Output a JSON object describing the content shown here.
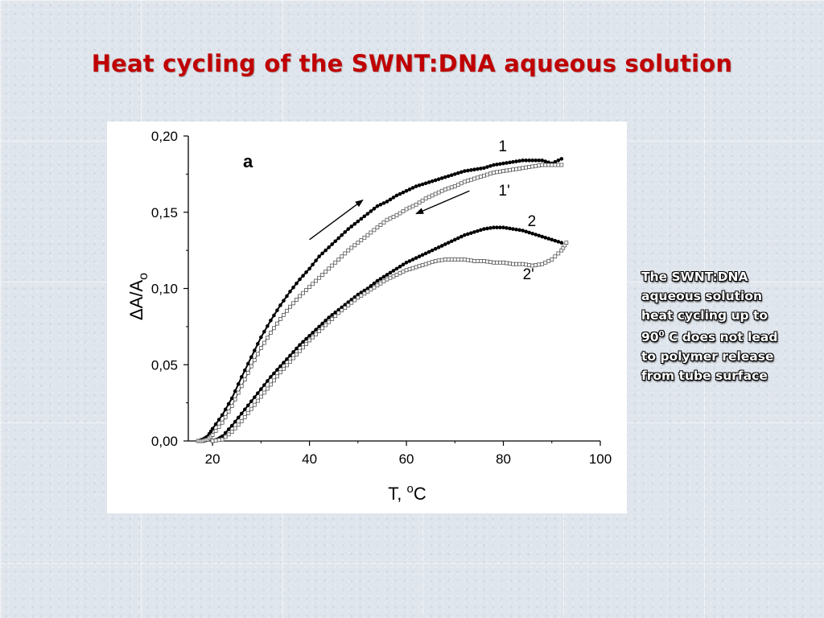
{
  "slide": {
    "title": "Heat cycling of the SWNT:DNA aqueous solution"
  },
  "caption": {
    "line1": "The SWNT:DNA",
    "line2": "aqueous solution",
    "line3": "heat cycling up to",
    "line4_value": "90",
    "line4_sup": "0",
    "line4_rest": " C does not lead",
    "line5": "to polymer release",
    "line6": "from tube surface"
  },
  "chart_data": {
    "type": "scatter",
    "panel_label": "a",
    "xlabel": "T, ",
    "xlabel_sup": "o",
    "xlabel_unit": "C",
    "ylabel": "ΔA/A",
    "ylabel_sub": "o",
    "xlim": [
      15,
      100
    ],
    "ylim": [
      0,
      0.2
    ],
    "x_ticks": [
      20,
      40,
      60,
      80,
      100
    ],
    "x_tick_labels": [
      "20",
      "40",
      "60",
      "80",
      "100"
    ],
    "y_ticks": [
      0,
      0.05,
      0.1,
      0.15,
      0.2
    ],
    "y_tick_labels": [
      "0,00",
      "0,05",
      "0,10",
      "0,15",
      "0,20"
    ],
    "grid": false,
    "series": [
      {
        "name": "1",
        "marker": "filled",
        "color": "#000000",
        "points": [
          [
            17,
            0
          ],
          [
            18,
            0.001
          ],
          [
            19,
            0.003
          ],
          [
            20,
            0.008
          ],
          [
            22,
            0.017
          ],
          [
            24,
            0.028
          ],
          [
            26,
            0.042
          ],
          [
            28,
            0.055
          ],
          [
            30,
            0.068
          ],
          [
            32,
            0.079
          ],
          [
            34,
            0.089
          ],
          [
            36,
            0.098
          ],
          [
            38,
            0.106
          ],
          [
            40,
            0.113
          ],
          [
            42,
            0.121
          ],
          [
            44,
            0.127
          ],
          [
            46,
            0.133
          ],
          [
            48,
            0.139
          ],
          [
            50,
            0.144
          ],
          [
            52,
            0.149
          ],
          [
            54,
            0.154
          ],
          [
            56,
            0.157
          ],
          [
            58,
            0.161
          ],
          [
            60,
            0.164
          ],
          [
            62,
            0.167
          ],
          [
            64,
            0.169
          ],
          [
            66,
            0.171
          ],
          [
            68,
            0.173
          ],
          [
            70,
            0.175
          ],
          [
            72,
            0.177
          ],
          [
            74,
            0.178
          ],
          [
            76,
            0.179
          ],
          [
            78,
            0.181
          ],
          [
            80,
            0.182
          ],
          [
            82,
            0.183
          ],
          [
            84,
            0.184
          ],
          [
            86,
            0.184
          ],
          [
            88,
            0.184
          ],
          [
            90,
            0.182
          ],
          [
            92,
            0.185
          ]
        ]
      },
      {
        "name": "1'",
        "marker": "open",
        "color": "#555555",
        "points": [
          [
            17,
            0
          ],
          [
            18,
            0
          ],
          [
            19,
            0.001
          ],
          [
            20,
            0.004
          ],
          [
            22,
            0.012
          ],
          [
            24,
            0.023
          ],
          [
            26,
            0.036
          ],
          [
            28,
            0.049
          ],
          [
            30,
            0.061
          ],
          [
            32,
            0.071
          ],
          [
            34,
            0.08
          ],
          [
            36,
            0.088
          ],
          [
            38,
            0.095
          ],
          [
            40,
            0.101
          ],
          [
            42,
            0.107
          ],
          [
            44,
            0.113
          ],
          [
            46,
            0.119
          ],
          [
            48,
            0.125
          ],
          [
            50,
            0.13
          ],
          [
            52,
            0.135
          ],
          [
            54,
            0.14
          ],
          [
            56,
            0.145
          ],
          [
            58,
            0.148
          ],
          [
            60,
            0.152
          ],
          [
            62,
            0.155
          ],
          [
            64,
            0.159
          ],
          [
            66,
            0.162
          ],
          [
            68,
            0.165
          ],
          [
            70,
            0.167
          ],
          [
            72,
            0.17
          ],
          [
            74,
            0.172
          ],
          [
            76,
            0.174
          ],
          [
            78,
            0.176
          ],
          [
            80,
            0.177
          ],
          [
            82,
            0.178
          ],
          [
            84,
            0.179
          ],
          [
            86,
            0.18
          ],
          [
            88,
            0.181
          ],
          [
            90,
            0.181
          ],
          [
            92,
            0.181
          ]
        ]
      },
      {
        "name": "2",
        "marker": "filled",
        "color": "#000000",
        "points": [
          [
            20,
            0
          ],
          [
            21,
            0.001
          ],
          [
            22,
            0.003
          ],
          [
            24,
            0.01
          ],
          [
            26,
            0.018
          ],
          [
            28,
            0.026
          ],
          [
            30,
            0.034
          ],
          [
            32,
            0.042
          ],
          [
            34,
            0.049
          ],
          [
            36,
            0.056
          ],
          [
            38,
            0.063
          ],
          [
            40,
            0.069
          ],
          [
            42,
            0.075
          ],
          [
            44,
            0.081
          ],
          [
            46,
            0.086
          ],
          [
            48,
            0.091
          ],
          [
            50,
            0.096
          ],
          [
            52,
            0.1
          ],
          [
            54,
            0.105
          ],
          [
            56,
            0.109
          ],
          [
            58,
            0.113
          ],
          [
            60,
            0.117
          ],
          [
            62,
            0.12
          ],
          [
            64,
            0.123
          ],
          [
            66,
            0.126
          ],
          [
            68,
            0.129
          ],
          [
            70,
            0.132
          ],
          [
            72,
            0.135
          ],
          [
            74,
            0.137
          ],
          [
            76,
            0.139
          ],
          [
            78,
            0.14
          ],
          [
            80,
            0.14
          ],
          [
            82,
            0.139
          ],
          [
            84,
            0.138
          ],
          [
            86,
            0.136
          ],
          [
            88,
            0.134
          ],
          [
            90,
            0.132
          ],
          [
            92,
            0.13
          ]
        ]
      },
      {
        "name": "2'",
        "marker": "open",
        "color": "#555555",
        "points": [
          [
            20,
            0
          ],
          [
            22,
            0.001
          ],
          [
            24,
            0.006
          ],
          [
            26,
            0.013
          ],
          [
            28,
            0.021
          ],
          [
            30,
            0.029
          ],
          [
            32,
            0.037
          ],
          [
            34,
            0.045
          ],
          [
            36,
            0.052
          ],
          [
            38,
            0.059
          ],
          [
            40,
            0.066
          ],
          [
            42,
            0.072
          ],
          [
            44,
            0.078
          ],
          [
            46,
            0.084
          ],
          [
            48,
            0.089
          ],
          [
            50,
            0.094
          ],
          [
            52,
            0.098
          ],
          [
            54,
            0.102
          ],
          [
            56,
            0.106
          ],
          [
            58,
            0.109
          ],
          [
            60,
            0.112
          ],
          [
            62,
            0.114
          ],
          [
            64,
            0.116
          ],
          [
            66,
            0.118
          ],
          [
            68,
            0.119
          ],
          [
            70,
            0.119
          ],
          [
            72,
            0.119
          ],
          [
            74,
            0.118
          ],
          [
            76,
            0.118
          ],
          [
            78,
            0.117
          ],
          [
            80,
            0.117
          ],
          [
            82,
            0.116
          ],
          [
            84,
            0.116
          ],
          [
            86,
            0.115
          ],
          [
            88,
            0.116
          ],
          [
            90,
            0.119
          ],
          [
            92,
            0.125
          ],
          [
            93,
            0.13
          ]
        ]
      }
    ],
    "annotations": [
      {
        "text": "1",
        "x": 79,
        "y": 0.19
      },
      {
        "text": "1'",
        "x": 79,
        "y": 0.161
      },
      {
        "text": "2",
        "x": 85,
        "y": 0.141
      },
      {
        "text": "2'",
        "x": 84,
        "y": 0.106
      }
    ],
    "arrows": [
      {
        "from": [
          40,
          0.132
        ],
        "to": [
          51,
          0.158
        ]
      },
      {
        "from": [
          73,
          0.164
        ],
        "to": [
          62,
          0.149
        ]
      }
    ]
  }
}
